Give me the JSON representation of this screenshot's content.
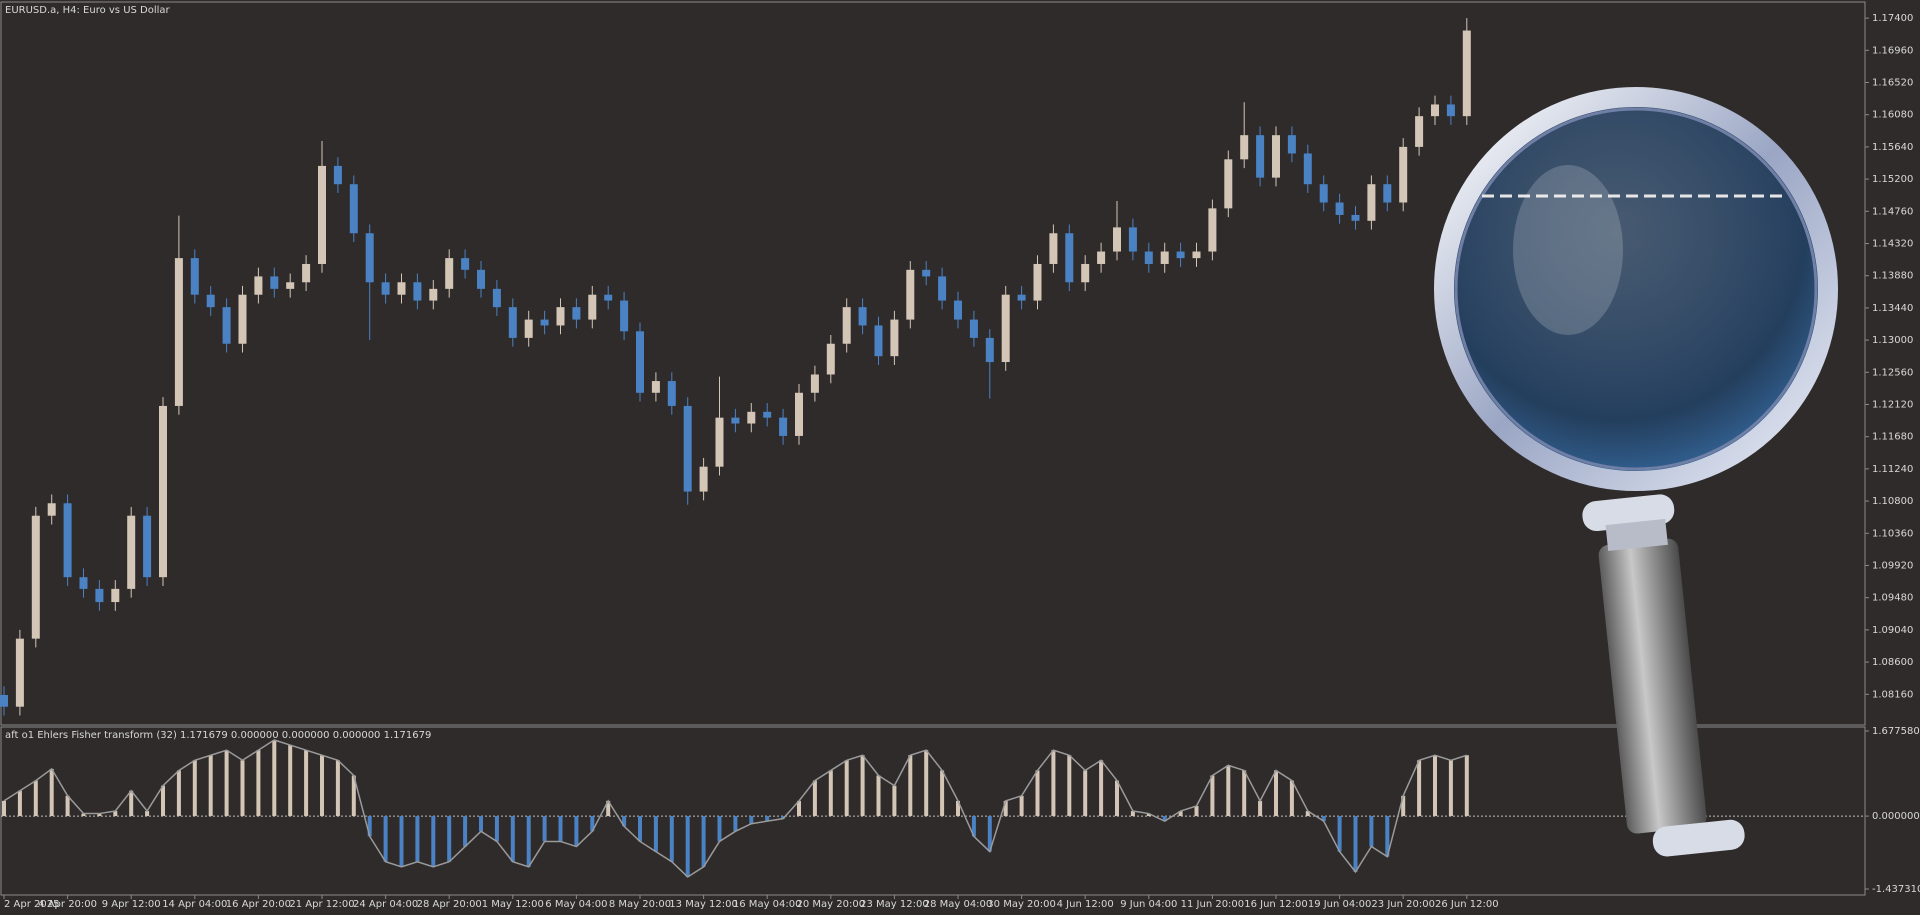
{
  "chart_data": [
    {
      "type": "candlestick",
      "title": "EURUSD.a, H4:  Euro vs US Dollar",
      "up_color": "#d4c6b6",
      "down_color": "#4a82c4",
      "ylim": [
        1.0774,
        1.1762
      ],
      "yticks": [
        {
          "value": 1.174,
          "label": "1.17400"
        },
        {
          "value": 1.1696,
          "label": "1.16960"
        },
        {
          "value": 1.1652,
          "label": "1.16520"
        },
        {
          "value": 1.1608,
          "label": "1.16080"
        },
        {
          "value": 1.1564,
          "label": "1.15640"
        },
        {
          "value": 1.152,
          "label": "1.15200"
        },
        {
          "value": 1.1476,
          "label": "1.14760"
        },
        {
          "value": 1.1432,
          "label": "1.14320"
        },
        {
          "value": 1.1388,
          "label": "1.13880"
        },
        {
          "value": 1.1344,
          "label": "1.13440"
        },
        {
          "value": 1.13,
          "label": "1.13000"
        },
        {
          "value": 1.1256,
          "label": "1.12560"
        },
        {
          "value": 1.1212,
          "label": "1.12120"
        },
        {
          "value": 1.1168,
          "label": "1.11680"
        },
        {
          "value": 1.1124,
          "label": "1.11240"
        },
        {
          "value": 1.108,
          "label": "1.10800"
        },
        {
          "value": 1.1036,
          "label": "1.10360"
        },
        {
          "value": 1.0992,
          "label": "1.09920"
        },
        {
          "value": 1.0948,
          "label": "1.09480"
        },
        {
          "value": 1.0904,
          "label": "1.09040"
        },
        {
          "value": 1.086,
          "label": "1.08600"
        },
        {
          "value": 1.0816,
          "label": "1.08160"
        }
      ],
      "categories": [
        "2 Apr 2025",
        null,
        null,
        null,
        "4 Apr 20:00",
        null,
        null,
        null,
        "9 Apr 12:00",
        null,
        null,
        null,
        "14 Apr 04:00",
        null,
        null,
        null,
        "16 Apr 20:00",
        null,
        null,
        null,
        "21 Apr 12:00",
        null,
        null,
        null,
        "24 Apr 04:00",
        null,
        null,
        null,
        "28 Apr 20:00",
        null,
        null,
        null,
        "1 May 12:00",
        null,
        null,
        null,
        "6 May 04:00",
        null,
        null,
        null,
        "8 May 20:00",
        null,
        null,
        null,
        "13 May 12:00",
        null,
        null,
        null,
        "16 May 04:00",
        null,
        null,
        null,
        "20 May 20:00",
        null,
        null,
        null,
        "23 May 12:00",
        null,
        null,
        null,
        "28 May 04:00",
        null,
        null,
        null,
        "30 May 20:00",
        null,
        null,
        null,
        "4 Jun 12:00",
        null,
        null,
        null,
        "9 Jun 04:00",
        null,
        null,
        null,
        "11 Jun 20:00",
        null,
        null,
        null,
        "16 Jun 12:00",
        null,
        null,
        null,
        "19 Jun 04:00",
        null,
        null,
        null,
        "23 Jun 20:00",
        null,
        null,
        null,
        "26 Jun 12:00"
      ],
      "open": [
        1.0815,
        1.0799,
        1.0892,
        1.106,
        1.1077,
        1.0976,
        1.096,
        1.0942,
        1.096,
        1.106,
        1.0976,
        1.121,
        1.1412,
        1.1362,
        1.1345,
        1.1295,
        1.1362,
        1.1387,
        1.137,
        1.1379,
        1.1404,
        1.1538,
        1.1513,
        1.1446,
        1.1379,
        1.1362,
        1.1379,
        1.1354,
        1.137,
        1.1412,
        1.1396,
        1.137,
        1.1345,
        1.1303,
        1.1328,
        1.132,
        1.1345,
        1.1328,
        1.1362,
        1.1354,
        1.1312,
        1.1228,
        1.1244,
        1.121,
        1.1093,
        1.1127,
        1.1194,
        1.1186,
        1.1202,
        1.1194,
        1.1169,
        1.1228,
        1.1253,
        1.1295,
        1.1345,
        1.132,
        1.1278,
        1.1328,
        1.1396,
        1.1387,
        1.1354,
        1.1328,
        1.1303,
        1.127,
        1.1362,
        1.1354,
        1.1404,
        1.1446,
        1.1379,
        1.1404,
        1.1421,
        1.1454,
        1.1421,
        1.1404,
        1.1421,
        1.1412,
        1.1421,
        1.148,
        1.1547,
        1.158,
        1.1522,
        1.158,
        1.1555,
        1.1513,
        1.1488,
        1.1471,
        1.1463,
        1.1513,
        1.1488,
        1.1564,
        1.1606,
        1.1622,
        1.1606
      ],
      "high": [
        1.0827,
        1.0904,
        1.1072,
        1.1089,
        1.1089,
        1.0988,
        1.0972,
        1.0972,
        1.1072,
        1.1072,
        1.1222,
        1.147,
        1.1424,
        1.1374,
        1.1357,
        1.1374,
        1.1399,
        1.1399,
        1.1391,
        1.1416,
        1.1572,
        1.155,
        1.1525,
        1.1458,
        1.1391,
        1.1391,
        1.1391,
        1.1382,
        1.1424,
        1.1424,
        1.1408,
        1.1382,
        1.1357,
        1.134,
        1.134,
        1.1357,
        1.1357,
        1.1374,
        1.1374,
        1.1366,
        1.1324,
        1.1256,
        1.1256,
        1.1222,
        1.1139,
        1.125,
        1.1206,
        1.1214,
        1.1214,
        1.1206,
        1.124,
        1.1265,
        1.1307,
        1.1357,
        1.1357,
        1.1332,
        1.134,
        1.1408,
        1.1408,
        1.1399,
        1.1366,
        1.134,
        1.1315,
        1.1374,
        1.1374,
        1.1416,
        1.1458,
        1.1458,
        1.1416,
        1.1433,
        1.149,
        1.1466,
        1.1433,
        1.1433,
        1.1433,
        1.1433,
        1.1492,
        1.1559,
        1.1625,
        1.1592,
        1.1592,
        1.1592,
        1.1567,
        1.1525,
        1.15,
        1.1483,
        1.1525,
        1.1525,
        1.1576,
        1.1618,
        1.1634,
        1.1634,
        1.174
      ],
      "low": [
        1.0787,
        1.0787,
        1.088,
        1.1048,
        1.0964,
        1.0948,
        1.093,
        1.093,
        1.0948,
        1.0964,
        1.0964,
        1.1198,
        1.135,
        1.1333,
        1.1283,
        1.1283,
        1.135,
        1.1358,
        1.1358,
        1.1367,
        1.1392,
        1.1501,
        1.1434,
        1.13,
        1.135,
        1.135,
        1.1342,
        1.1342,
        1.1358,
        1.1384,
        1.1358,
        1.1333,
        1.1291,
        1.1291,
        1.1308,
        1.1308,
        1.1316,
        1.1316,
        1.1342,
        1.13,
        1.1216,
        1.1216,
        1.1198,
        1.1075,
        1.1081,
        1.1115,
        1.1174,
        1.1174,
        1.1182,
        1.1157,
        1.1157,
        1.1216,
        1.1241,
        1.1283,
        1.1308,
        1.1266,
        1.1266,
        1.1316,
        1.1375,
        1.1342,
        1.1316,
        1.1291,
        1.122,
        1.1258,
        1.1342,
        1.1342,
        1.1392,
        1.1367,
        1.1367,
        1.1392,
        1.1409,
        1.1409,
        1.1392,
        1.1392,
        1.14,
        1.14,
        1.1409,
        1.1468,
        1.1535,
        1.151,
        1.151,
        1.1543,
        1.1501,
        1.1476,
        1.1459,
        1.1451,
        1.1451,
        1.1476,
        1.1476,
        1.1552,
        1.1594,
        1.1594,
        1.1594
      ],
      "close": [
        1.0799,
        1.0892,
        1.106,
        1.1077,
        1.0976,
        1.096,
        1.0942,
        1.096,
        1.106,
        1.0976,
        1.121,
        1.1412,
        1.1362,
        1.1345,
        1.1295,
        1.1362,
        1.1387,
        1.137,
        1.1379,
        1.1404,
        1.1538,
        1.1513,
        1.1446,
        1.1379,
        1.1362,
        1.1379,
        1.1354,
        1.137,
        1.1412,
        1.1396,
        1.137,
        1.1345,
        1.1303,
        1.1328,
        1.132,
        1.1345,
        1.1328,
        1.1362,
        1.1354,
        1.1312,
        1.1228,
        1.1244,
        1.121,
        1.1093,
        1.1127,
        1.1194,
        1.1186,
        1.1202,
        1.1194,
        1.1169,
        1.1228,
        1.1253,
        1.1295,
        1.1345,
        1.132,
        1.1278,
        1.1328,
        1.1396,
        1.1387,
        1.1354,
        1.1328,
        1.1303,
        1.127,
        1.1362,
        1.1354,
        1.1404,
        1.1446,
        1.1379,
        1.1404,
        1.1421,
        1.1454,
        1.1421,
        1.1404,
        1.1421,
        1.1412,
        1.1421,
        1.148,
        1.1547,
        1.158,
        1.1522,
        1.158,
        1.1555,
        1.1513,
        1.1488,
        1.1471,
        1.1463,
        1.1513,
        1.1488,
        1.1564,
        1.1606,
        1.1622,
        1.1606,
        1.1723
      ]
    },
    {
      "type": "bar",
      "title": "aft o1 Ehlers Fisher transform (32) 1.171679 0.000000 0.000000 0.000000 1.171679",
      "color": "#d4c6b6",
      "negative_color": "#4a82c4",
      "line_color": "#9a9a9a",
      "ylim": [
        -1.43731,
        1.67758
      ],
      "yticks": [
        {
          "value": 1.67758,
          "label": "1.677580"
        },
        {
          "value": 0,
          "label": "0.000000"
        },
        {
          "value": -1.43731,
          "label": "-1.437310"
        }
      ],
      "values": [
        0.3,
        0.5,
        0.7,
        0.93,
        0.4,
        0.05,
        0.05,
        0.1,
        0.5,
        0.1,
        0.6,
        0.9,
        1.1,
        1.2,
        1.3,
        1.1,
        1.3,
        1.5,
        1.4,
        1.3,
        1.2,
        1.1,
        0.8,
        -0.4,
        -0.9,
        -1.0,
        -0.9,
        -1.0,
        -0.9,
        -0.6,
        -0.3,
        -0.5,
        -0.9,
        -1.0,
        -0.5,
        -0.5,
        -0.6,
        -0.3,
        0.3,
        -0.2,
        -0.5,
        -0.7,
        -0.9,
        -1.2,
        -1.0,
        -0.5,
        -0.3,
        -0.15,
        -0.1,
        -0.05,
        0.3,
        0.7,
        0.9,
        1.1,
        1.2,
        0.8,
        0.6,
        1.2,
        1.3,
        0.9,
        0.3,
        -0.4,
        -0.7,
        0.3,
        0.4,
        0.9,
        1.3,
        1.2,
        0.9,
        1.1,
        0.7,
        0.1,
        0.05,
        -0.1,
        0.1,
        0.2,
        0.8,
        1.0,
        0.9,
        0.3,
        0.9,
        0.7,
        0.1,
        -0.1,
        -0.7,
        -1.1,
        -0.6,
        -0.8,
        0.4,
        1.1,
        1.2,
        1.1,
        1.2
      ]
    }
  ]
}
